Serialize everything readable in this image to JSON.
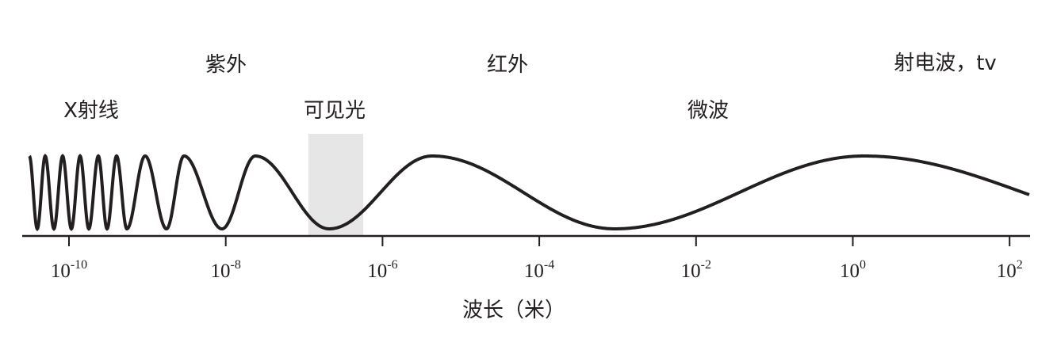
{
  "labels": [
    "X射线",
    "紫外",
    "可见光",
    "红外",
    "微波",
    "射电波，tv"
  ],
  "axis": {
    "title": "波长（米）",
    "ticks": [
      {
        "base": "10",
        "exp": "-10"
      },
      {
        "base": "10",
        "exp": "-8"
      },
      {
        "base": "10",
        "exp": "-6"
      },
      {
        "base": "10",
        "exp": "-4"
      },
      {
        "base": "10",
        "exp": "-2"
      },
      {
        "base": "10",
        "exp": "0"
      },
      {
        "base": "10",
        "exp": "2"
      }
    ]
  }
}
